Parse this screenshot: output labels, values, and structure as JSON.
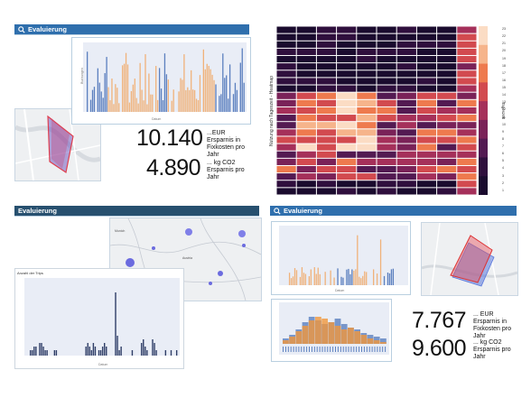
{
  "panels": {
    "top_left": {
      "header": "Evaluierung",
      "value1": "10.140",
      "value1_unit": "...EUR",
      "value1_desc": "Ersparnis in Fixkosten pro Jahr",
      "value2": "4.890",
      "value2_unit": "... kg CO2",
      "value2_desc": "Ersparnis pro Jahr",
      "x_axis_title": "Datum",
      "y_axis_title": "Buchungen"
    },
    "top_right": {
      "y_axis_title": "Nutzung nach Tageszeit - Heatmap",
      "colorbar_title": "Tageszeit",
      "hours": [
        "23",
        "22",
        "21",
        "20",
        "19",
        "18",
        "17",
        "16",
        "15",
        "14",
        "13",
        "12",
        "11",
        "10",
        "9",
        "8",
        "7",
        "6",
        "5",
        "4",
        "3",
        "2",
        "1"
      ]
    },
    "bottom_left": {
      "header": "Evaluierung",
      "chart_title": "Anzahl der Trips",
      "x_axis_title": "Datum",
      "map_labels": [
        "Munich",
        "Austria"
      ]
    },
    "bottom_right": {
      "header": "Evaluierung",
      "value1": "7.767",
      "value1_unit": "... EUR",
      "value1_desc": "Ersparnis in Fixkosten pro Jahr",
      "value2": "9.600",
      "value2_unit": "... kg CO2",
      "value2_desc": "Ersparnis pro Jahr",
      "x_axis_title": "Datum"
    }
  },
  "colors": {
    "header_blue": "#2f6fad",
    "header_dark": "#27506f",
    "bar_orange": "#f0b27a",
    "bar_blue": "#5b7fbf",
    "bar_navy": "#2f3e67",
    "plot_bg": "#e9edf6"
  },
  "icons": [
    "search-icon"
  ]
}
